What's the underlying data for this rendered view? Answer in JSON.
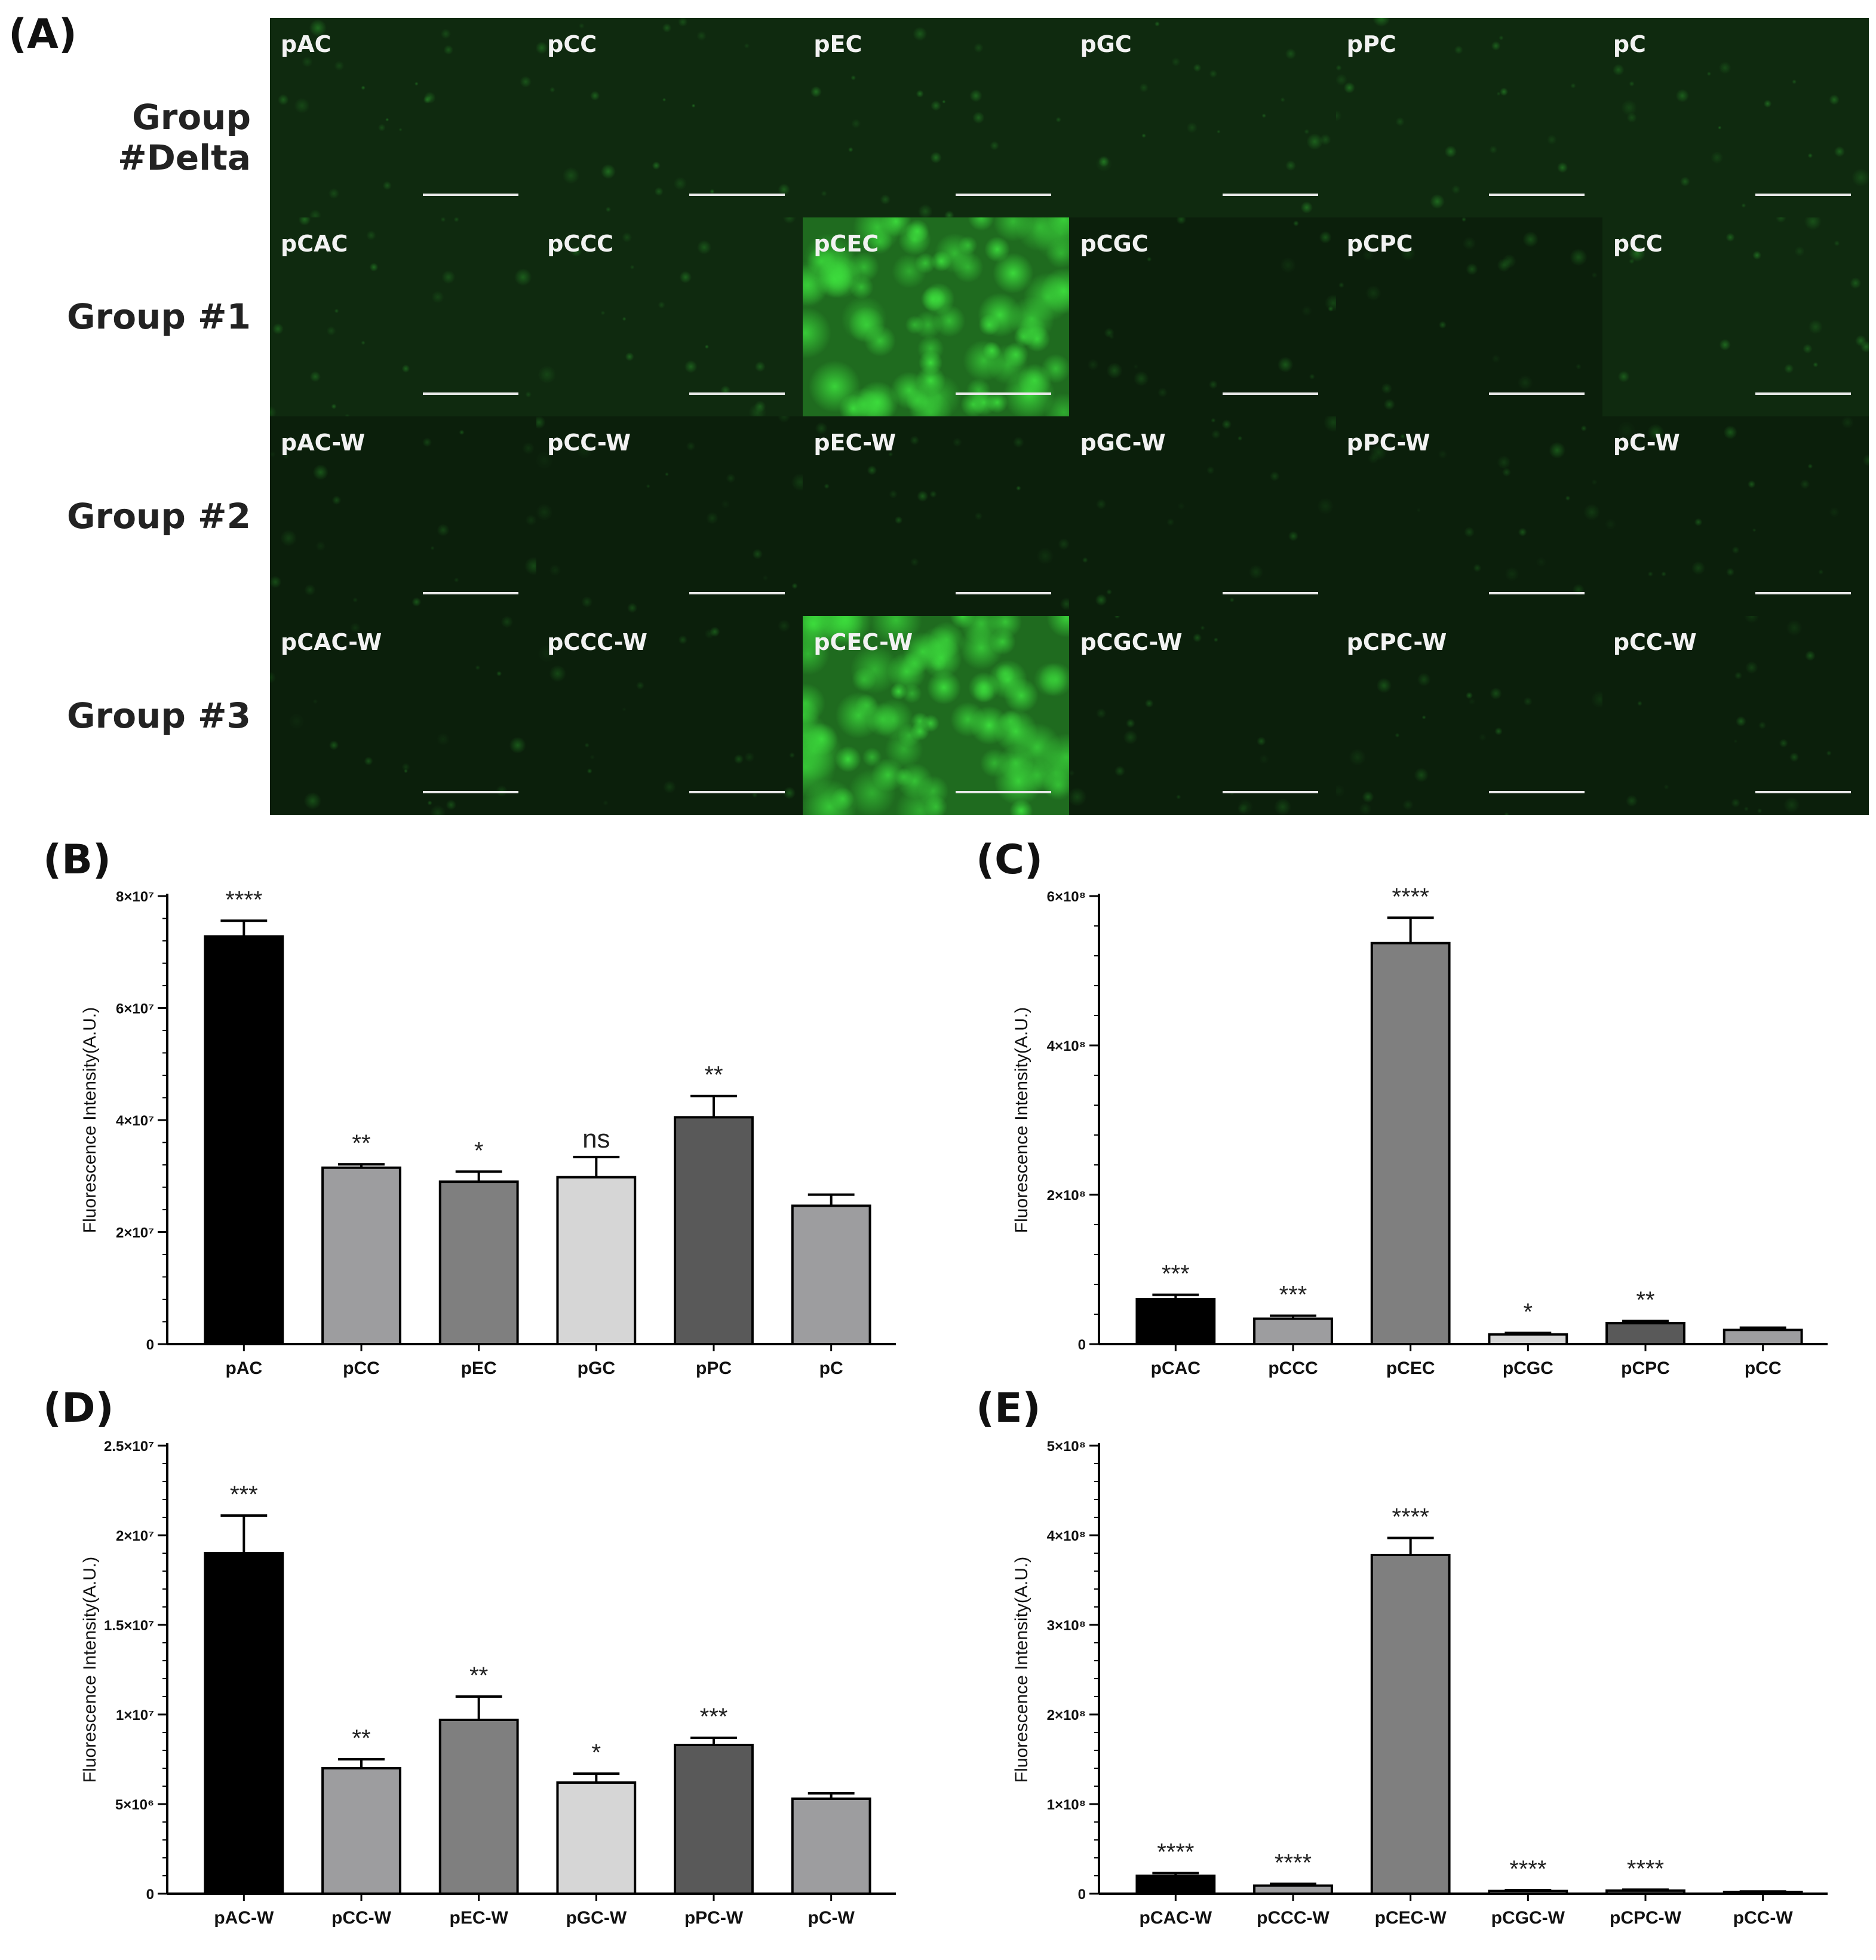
{
  "panel_labels": {
    "a": "(A)",
    "b": "(B)",
    "c": "(C)",
    "d": "(D)",
    "e": "(E)"
  },
  "microscopy": {
    "rows": [
      {
        "label": "Group #Delta",
        "tiles": [
          {
            "label": "pAC",
            "intensity": "low"
          },
          {
            "label": "pCC",
            "intensity": "low"
          },
          {
            "label": "pEC",
            "intensity": "low"
          },
          {
            "label": "pGC",
            "intensity": "low"
          },
          {
            "label": "pPC",
            "intensity": "low"
          },
          {
            "label": "pC",
            "intensity": "low"
          }
        ]
      },
      {
        "label": "Group #1",
        "tiles": [
          {
            "label": "pCAC",
            "intensity": "low"
          },
          {
            "label": "pCCC",
            "intensity": "low"
          },
          {
            "label": "pCEC",
            "intensity": "high"
          },
          {
            "label": "pCGC",
            "intensity": "very-low"
          },
          {
            "label": "pCPC",
            "intensity": "very-low"
          },
          {
            "label": "pCC",
            "intensity": "low"
          }
        ]
      },
      {
        "label": "Group #2",
        "tiles": [
          {
            "label": "pAC-W",
            "intensity": "very-low"
          },
          {
            "label": "pCC-W",
            "intensity": "very-low"
          },
          {
            "label": "pEC-W",
            "intensity": "very-low"
          },
          {
            "label": "pGC-W",
            "intensity": "very-low"
          },
          {
            "label": "pPC-W",
            "intensity": "very-low"
          },
          {
            "label": "pC-W",
            "intensity": "very-low"
          }
        ]
      },
      {
        "label": "Group #3",
        "tiles": [
          {
            "label": "pCAC-W",
            "intensity": "very-low"
          },
          {
            "label": "pCCC-W",
            "intensity": "very-low"
          },
          {
            "label": "pCEC-W",
            "intensity": "high"
          },
          {
            "label": "pCGC-W",
            "intensity": "very-low"
          },
          {
            "label": "pCPC-W",
            "intensity": "very-low"
          },
          {
            "label": "pCC-W",
            "intensity": "very-low"
          }
        ]
      }
    ]
  },
  "colors": {
    "fluorescence_bg": "#0b1f0b",
    "fluorescence_spot": "#33d633",
    "bar_black": "#000000",
    "bar_mid_gray": "#9d9d9f",
    "bar_gray": "#7f7f7f",
    "bar_light_gray": "#d6d6d6",
    "bar_dark_gray": "#595959"
  },
  "chart_data": [
    {
      "id": "B",
      "type": "bar",
      "ylabel": "Fluorescence Intensity(A.U.)",
      "ylim": [
        0,
        80000000
      ],
      "ytick_values": [
        0,
        20000000,
        40000000,
        60000000,
        80000000
      ],
      "ytick_labels": [
        "0",
        "2×10⁷",
        "4×10⁷",
        "6×10⁷",
        "8×10⁷"
      ],
      "categories": [
        "pAC",
        "pCC",
        "pEC",
        "pGC",
        "pPC",
        "pC"
      ],
      "values": [
        72800000,
        31500000,
        29000000,
        29800000,
        40500000,
        24700000
      ],
      "errors": [
        2800000,
        600000,
        1800000,
        3600000,
        3800000,
        2000000
      ],
      "significance": [
        "****",
        "**",
        "*",
        "ns",
        "**",
        ""
      ],
      "bar_colors": [
        "#000000",
        "#9d9d9f",
        "#7f7f7f",
        "#d6d6d6",
        "#595959",
        "#9d9d9f"
      ]
    },
    {
      "id": "C",
      "type": "bar",
      "ylabel": "Fluorescence Intensity(A.U.)",
      "ylim": [
        0,
        600000000
      ],
      "ytick_values": [
        0,
        200000000,
        400000000,
        600000000
      ],
      "ytick_labels": [
        "0",
        "2×10⁸",
        "4×10⁸",
        "6×10⁸"
      ],
      "categories": [
        "pCAC",
        "pCCC",
        "pCEC",
        "pCGC",
        "pCPC",
        "pCC"
      ],
      "values": [
        60000000,
        34000000,
        537000000,
        13000000,
        28000000,
        19000000
      ],
      "errors": [
        6000000,
        4000000,
        34000000,
        2000000,
        3000000,
        3000000
      ],
      "significance": [
        "***",
        "***",
        "****",
        "*",
        "**",
        ""
      ],
      "bar_colors": [
        "#000000",
        "#9d9d9f",
        "#7f7f7f",
        "#d6d6d6",
        "#595959",
        "#9d9d9f"
      ]
    },
    {
      "id": "D",
      "type": "bar",
      "ylabel": "Fluorescence Intensity(A.U.)",
      "ylim": [
        0,
        25000000
      ],
      "ytick_values": [
        0,
        5000000,
        10000000,
        15000000,
        20000000,
        25000000
      ],
      "ytick_labels": [
        "0",
        "5×10⁶",
        "1×10⁷",
        "1.5×10⁷",
        "2×10⁷",
        "2.5×10⁷"
      ],
      "categories": [
        "pAC-W",
        "pCC-W",
        "pEC-W",
        "pGC-W",
        "pPC-W",
        "pC-W"
      ],
      "values": [
        19000000,
        7000000,
        9700000,
        6200000,
        8300000,
        5300000
      ],
      "errors": [
        2100000,
        500000,
        1300000,
        500000,
        400000,
        300000
      ],
      "significance": [
        "***",
        "**",
        "**",
        "*",
        "***",
        ""
      ],
      "bar_colors": [
        "#000000",
        "#9d9d9f",
        "#7f7f7f",
        "#d6d6d6",
        "#595959",
        "#9d9d9f"
      ]
    },
    {
      "id": "E",
      "type": "bar",
      "ylabel": "Fluorescence Intensity(A.U.)",
      "ylim": [
        0,
        500000000
      ],
      "ytick_values": [
        0,
        100000000,
        200000000,
        300000000,
        400000000,
        500000000
      ],
      "ytick_labels": [
        "0",
        "1×10⁸",
        "2×10⁸",
        "3×10⁸",
        "4×10⁸",
        "5×10⁸"
      ],
      "categories": [
        "pCAC-W",
        "pCCC-W",
        "pCEC-W",
        "pCGC-W",
        "pCPC-W",
        "pCC-W"
      ],
      "values": [
        20000000,
        9000000,
        378000000,
        3000000,
        3500000,
        2000000
      ],
      "errors": [
        3000000,
        2000000,
        19000000,
        1000000,
        1000000,
        500000
      ],
      "significance": [
        "****",
        "****",
        "****",
        "****",
        "****",
        ""
      ],
      "bar_colors": [
        "#000000",
        "#9d9d9f",
        "#7f7f7f",
        "#d6d6d6",
        "#595959",
        "#9d9d9f"
      ]
    }
  ]
}
